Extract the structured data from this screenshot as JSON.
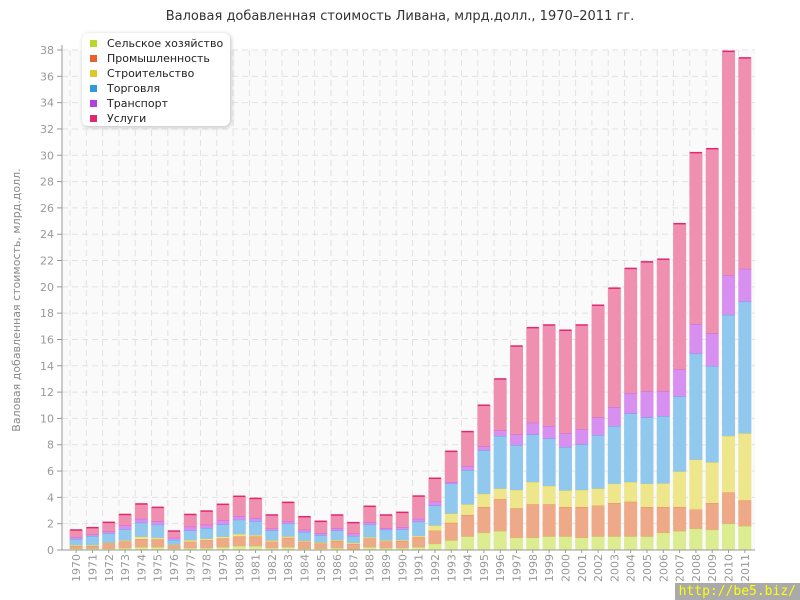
{
  "chart_data": {
    "type": "bar",
    "stacked": true,
    "title": "Валовая добавленная стоимость Ливана, млрд.долл., 1970–2011 гг.",
    "xlabel": "",
    "ylabel": "Валовая добавленная стоимость, млрд.долл.",
    "ylim": [
      0,
      38
    ],
    "yticks": [
      0,
      2,
      4,
      6,
      8,
      10,
      12,
      14,
      16,
      18,
      20,
      22,
      24,
      26,
      28,
      30,
      32,
      34,
      36,
      38
    ],
    "grid": true,
    "legend_position": "top-left",
    "categories": [
      "1970",
      "1971",
      "1972",
      "1973",
      "1974",
      "1975",
      "1976",
      "1977",
      "1978",
      "1979",
      "1980",
      "1981",
      "1982",
      "1983",
      "1984",
      "1985",
      "1986",
      "1987",
      "1988",
      "1989",
      "1990",
      "1991",
      "1992",
      "1993",
      "1994",
      "1995",
      "1996",
      "1997",
      "1998",
      "1999",
      "2000",
      "2001",
      "2002",
      "2003",
      "2004",
      "2005",
      "2006",
      "2007",
      "2008",
      "2009",
      "2010",
      "2011"
    ],
    "series": [
      {
        "name": "Сельское хозяйство",
        "color": "#b8d82a",
        "fill": "#dcec90",
        "values": [
          0.13,
          0.13,
          0.13,
          0.18,
          0.25,
          0.25,
          0.13,
          0.18,
          0.18,
          0.25,
          0.33,
          0.33,
          0.18,
          0.25,
          0.13,
          0.13,
          0.18,
          0.1,
          0.25,
          0.18,
          0.18,
          0.25,
          0.5,
          0.76,
          1.06,
          1.34,
          1.47,
          0.96,
          0.96,
          1.06,
          1.06,
          0.96,
          1.06,
          1.06,
          1.06,
          1.06,
          1.34,
          1.47,
          1.65,
          1.57,
          2.03,
          1.85
        ]
      },
      {
        "name": "Промышленность",
        "color": "#e8602c",
        "fill": "#eeaa88",
        "values": [
          0.2,
          0.2,
          0.4,
          0.5,
          0.61,
          0.59,
          0.25,
          0.48,
          0.6,
          0.66,
          0.73,
          0.73,
          0.48,
          0.71,
          0.53,
          0.4,
          0.53,
          0.4,
          0.66,
          0.5,
          0.53,
          0.75,
          1.0,
          1.34,
          1.64,
          1.96,
          2.43,
          2.24,
          2.54,
          2.44,
          2.24,
          2.34,
          2.34,
          2.54,
          2.64,
          2.24,
          1.96,
          1.83,
          1.45,
          2.03,
          2.37,
          1.95
        ]
      },
      {
        "name": "Строительство",
        "color": "#dcc828",
        "fill": "#eee68a",
        "values": [
          0.07,
          0.07,
          0.05,
          0.08,
          0.18,
          0.12,
          0.05,
          0.12,
          0.11,
          0.13,
          0.18,
          0.1,
          0.1,
          0.1,
          0.07,
          0.07,
          0.07,
          0.08,
          0.09,
          0.08,
          0.07,
          0.1,
          0.4,
          0.7,
          0.8,
          1.0,
          0.8,
          1.4,
          1.7,
          1.4,
          1.26,
          1.3,
          1.3,
          1.47,
          1.5,
          1.77,
          1.8,
          2.7,
          3.8,
          3.1,
          4.3,
          5.1
        ]
      },
      {
        "name": "Торговля",
        "color": "#3399dd",
        "fill": "#90c8ee",
        "values": [
          0.46,
          0.7,
          0.72,
          0.84,
          1.06,
          0.99,
          0.37,
          0.72,
          0.81,
          0.93,
          1.09,
          1.07,
          0.76,
          0.97,
          0.67,
          0.56,
          0.72,
          0.52,
          0.95,
          0.81,
          0.82,
          1.08,
          1.5,
          2.27,
          2.6,
          3.3,
          4.0,
          3.4,
          3.6,
          3.6,
          3.29,
          3.45,
          4.05,
          4.38,
          5.2,
          5.03,
          5.1,
          5.7,
          8.05,
          7.3,
          9.2,
          10.0
        ]
      },
      {
        "name": "Транспорт",
        "color": "#b040e0",
        "fill": "#d890f0",
        "values": [
          0.14,
          0.1,
          0.15,
          0.3,
          0.3,
          0.25,
          0.16,
          0.3,
          0.25,
          0.31,
          0.25,
          0.23,
          0.13,
          0.17,
          0.17,
          0.14,
          0.17,
          0.17,
          0.18,
          0.13,
          0.17,
          0.22,
          0.3,
          0.13,
          0.3,
          0.3,
          0.4,
          0.8,
          0.9,
          0.95,
          1.05,
          1.15,
          1.35,
          1.45,
          1.55,
          2.0,
          1.9,
          2.05,
          2.25,
          2.5,
          3.0,
          2.5
        ]
      },
      {
        "name": "Услуги",
        "color": "#e02870",
        "fill": "#f090b0",
        "values": [
          0.52,
          0.5,
          0.65,
          0.8,
          1.1,
          1.04,
          0.48,
          0.9,
          1.01,
          1.19,
          1.5,
          1.46,
          1.01,
          1.42,
          0.96,
          0.88,
          0.99,
          0.81,
          1.19,
          0.96,
          1.09,
          1.7,
          1.75,
          2.3,
          2.6,
          3.1,
          3.9,
          6.7,
          7.2,
          7.65,
          7.8,
          7.9,
          8.5,
          9.0,
          9.45,
          9.8,
          10.0,
          11.05,
          13.0,
          14.0,
          17.0,
          16.0
        ]
      }
    ]
  },
  "watermark": "http://be5.biz/"
}
